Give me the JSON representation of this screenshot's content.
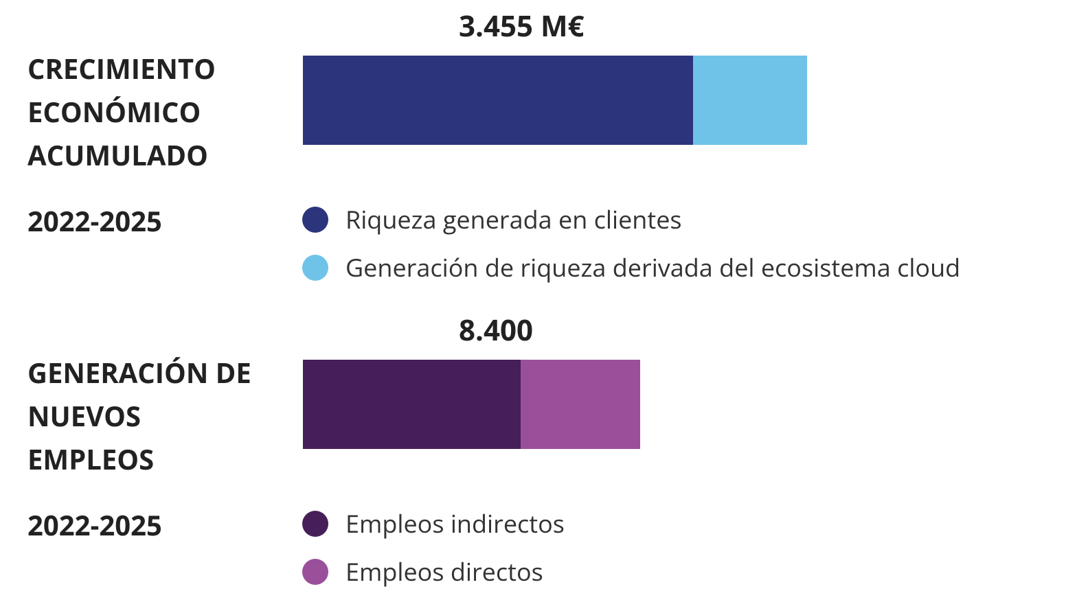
{
  "chart_data": [
    {
      "type": "bar",
      "title": "CRECIMIENTO ECONÓMICO ACUMULADO",
      "subtitle": "2022-2025",
      "annotation": "3.455 M€",
      "series": [
        {
          "name": "Riqueza generada en clientes",
          "color": "#2c357c",
          "values": [
            2674
          ]
        },
        {
          "name": "Generación de riqueza derivada del ecosistema cloud",
          "color": "#6fc3e8",
          "values": [
            781
          ]
        }
      ]
    },
    {
      "type": "bar",
      "title": "GENERACIÓN DE NUEVOS EMPLEOS",
      "subtitle": "2022-2025",
      "annotation": "8.400",
      "series": [
        {
          "name": "Empleos indirectos",
          "color": "#461f58",
          "values": [
            5423
          ]
        },
        {
          "name": "Empleos directos",
          "color": "#9a4f9a",
          "values": [
            2977
          ]
        }
      ]
    }
  ]
}
